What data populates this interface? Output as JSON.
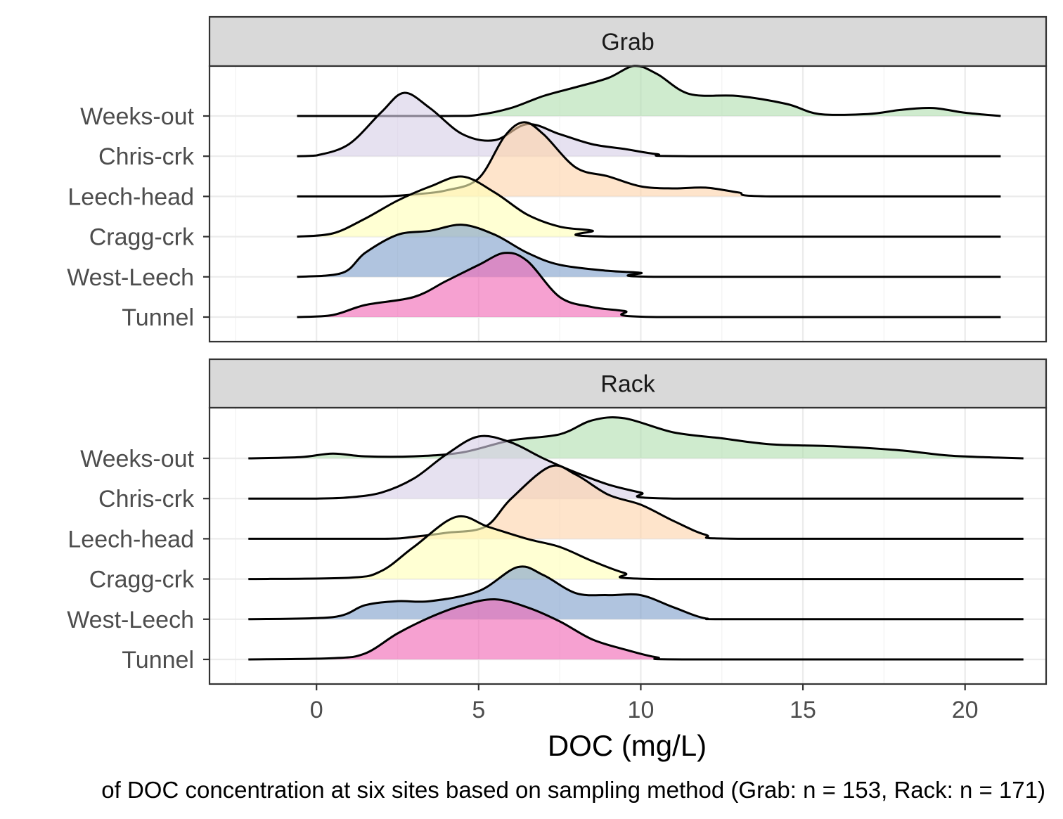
{
  "chart_data": {
    "type": "ridgeline",
    "xlabel": "DOC (mg/L)",
    "caption": "of DOC concentration at six sites based on sampling method (Grab: n = 153, Rack: n = 171)",
    "xlim": [
      -3.3,
      22.5
    ],
    "x_ticks": [
      0,
      5,
      10,
      15,
      20
    ],
    "x_tick_labels": [
      "0",
      "5",
      "10",
      "15",
      "20"
    ],
    "categories": [
      "Weeks-out",
      "Chris-crk",
      "Leech-head",
      "Cragg-crk",
      "West-Leech",
      "Tunnel"
    ],
    "grid": true,
    "colors": {
      "Weeks-out": "#b2dfb0",
      "Chris-crk": "#d6cfe6",
      "Leech-head": "#fdd4ab",
      "Cragg-crk": "#ffffb8",
      "West-Leech": "#7f9fcc",
      "Tunnel": "#f067b4"
    },
    "panels": [
      {
        "label": "Grab",
        "range": [
          -0.6,
          21.1
        ],
        "series": [
          {
            "name": "Weeks-out",
            "points": [
              [
                -0.6,
                0
              ],
              [
                4,
                0
              ],
              [
                5,
                0.03
              ],
              [
                6,
                0.2
              ],
              [
                7,
                0.5
              ],
              [
                8,
                0.72
              ],
              [
                9,
                0.95
              ],
              [
                9.8,
                1.25
              ],
              [
                10.5,
                1.05
              ],
              [
                11.5,
                0.55
              ],
              [
                13,
                0.5
              ],
              [
                14.5,
                0.3
              ],
              [
                15.5,
                0.05
              ],
              [
                17,
                0.05
              ],
              [
                18,
                0.15
              ],
              [
                19,
                0.2
              ],
              [
                20,
                0.08
              ],
              [
                21.1,
                0
              ]
            ]
          },
          {
            "name": "Chris-crk",
            "points": [
              [
                -0.6,
                0
              ],
              [
                0,
                0.02
              ],
              [
                1,
                0.3
              ],
              [
                2,
                1.1
              ],
              [
                2.7,
                1.58
              ],
              [
                3.5,
                1.2
              ],
              [
                4.5,
                0.55
              ],
              [
                5.5,
                0.4
              ],
              [
                6.5,
                0.8
              ],
              [
                7.5,
                0.55
              ],
              [
                8.5,
                0.3
              ],
              [
                9.5,
                0.18
              ],
              [
                10.5,
                0.05
              ],
              [
                11.5,
                0
              ],
              [
                21.1,
                0
              ]
            ]
          },
          {
            "name": "Leech-head",
            "points": [
              [
                -0.6,
                0
              ],
              [
                2,
                0
              ],
              [
                3,
                0.05
              ],
              [
                4,
                0.15
              ],
              [
                5,
                0.45
              ],
              [
                5.8,
                1.5
              ],
              [
                6.4,
                1.85
              ],
              [
                7,
                1.55
              ],
              [
                8,
                0.72
              ],
              [
                9,
                0.5
              ],
              [
                10,
                0.25
              ],
              [
                11,
                0.2
              ],
              [
                12,
                0.22
              ],
              [
                13,
                0.1
              ],
              [
                14,
                0
              ],
              [
                21.1,
                0
              ]
            ]
          },
          {
            "name": "Cragg-crk",
            "points": [
              [
                -0.6,
                0
              ],
              [
                0.5,
                0.08
              ],
              [
                1.5,
                0.45
              ],
              [
                2.5,
                0.9
              ],
              [
                3.5,
                1.25
              ],
              [
                4.5,
                1.5
              ],
              [
                5.5,
                1.1
              ],
              [
                6.5,
                0.55
              ],
              [
                7.5,
                0.25
              ],
              [
                8.5,
                0.15
              ],
              [
                9,
                0
              ],
              [
                21.1,
                0
              ]
            ]
          },
          {
            "name": "West-Leech",
            "points": [
              [
                -0.6,
                0
              ],
              [
                0.8,
                0.1
              ],
              [
                1.5,
                0.6
              ],
              [
                2.5,
                1.05
              ],
              [
                3.5,
                1.15
              ],
              [
                4.5,
                1.3
              ],
              [
                5.5,
                1.05
              ],
              [
                6.5,
                0.6
              ],
              [
                7.5,
                0.3
              ],
              [
                9,
                0.15
              ],
              [
                10,
                0.1
              ],
              [
                10.5,
                0
              ],
              [
                21.1,
                0
              ]
            ]
          },
          {
            "name": "Tunnel",
            "points": [
              [
                -0.6,
                0
              ],
              [
                0.5,
                0.05
              ],
              [
                1.5,
                0.3
              ],
              [
                3,
                0.5
              ],
              [
                4,
                0.9
              ],
              [
                5,
                1.3
              ],
              [
                5.8,
                1.6
              ],
              [
                6.5,
                1.4
              ],
              [
                7.5,
                0.5
              ],
              [
                8.5,
                0.25
              ],
              [
                9.5,
                0.15
              ],
              [
                10.5,
                0
              ],
              [
                21.1,
                0
              ]
            ]
          }
        ]
      },
      {
        "label": "Rack",
        "range": [
          -2.1,
          21.8
        ],
        "series": [
          {
            "name": "Weeks-out",
            "points": [
              [
                -2.1,
                0
              ],
              [
                -0.5,
                0.03
              ],
              [
                0.5,
                0.12
              ],
              [
                1.5,
                0.05
              ],
              [
                3,
                0.05
              ],
              [
                4.5,
                0.15
              ],
              [
                6,
                0.45
              ],
              [
                7.5,
                0.6
              ],
              [
                8.5,
                0.95
              ],
              [
                9.5,
                1.0
              ],
              [
                11,
                0.65
              ],
              [
                12.5,
                0.5
              ],
              [
                14,
                0.35
              ],
              [
                16,
                0.3
              ],
              [
                18,
                0.2
              ],
              [
                19.5,
                0.07
              ],
              [
                21,
                0.02
              ],
              [
                21.8,
                0
              ]
            ]
          },
          {
            "name": "Chris-crk",
            "points": [
              [
                -2.1,
                0
              ],
              [
                0,
                0
              ],
              [
                1,
                0.03
              ],
              [
                2,
                0.15
              ],
              [
                3,
                0.5
              ],
              [
                4,
                1.1
              ],
              [
                5,
                1.55
              ],
              [
                6,
                1.4
              ],
              [
                7,
                1.0
              ],
              [
                8,
                0.65
              ],
              [
                9,
                0.35
              ],
              [
                10,
                0.15
              ],
              [
                11,
                0
              ],
              [
                21.8,
                0
              ]
            ]
          },
          {
            "name": "Leech-head",
            "points": [
              [
                -2.1,
                0
              ],
              [
                2,
                0
              ],
              [
                3,
                0.05
              ],
              [
                4,
                0.15
              ],
              [
                5.2,
                0.3
              ],
              [
                6,
                1.0
              ],
              [
                7.2,
                1.8
              ],
              [
                8,
                1.6
              ],
              [
                9,
                1.1
              ],
              [
                10,
                0.85
              ],
              [
                11,
                0.45
              ],
              [
                12,
                0.1
              ],
              [
                13,
                0
              ],
              [
                21.8,
                0
              ]
            ]
          },
          {
            "name": "Cragg-crk",
            "points": [
              [
                -2.1,
                0
              ],
              [
                1,
                0.03
              ],
              [
                2,
                0.2
              ],
              [
                3,
                0.8
              ],
              [
                4.3,
                1.55
              ],
              [
                5.3,
                1.3
              ],
              [
                6.5,
                1.0
              ],
              [
                7.5,
                0.8
              ],
              [
                8.5,
                0.45
              ],
              [
                9.5,
                0.15
              ],
              [
                10.5,
                0
              ],
              [
                21.8,
                0
              ]
            ]
          },
          {
            "name": "West-Leech",
            "points": [
              [
                -2.1,
                0
              ],
              [
                0.5,
                0.05
              ],
              [
                1.5,
                0.35
              ],
              [
                2.5,
                0.45
              ],
              [
                3.5,
                0.45
              ],
              [
                5,
                0.7
              ],
              [
                6.2,
                1.3
              ],
              [
                7,
                1.1
              ],
              [
                8,
                0.65
              ],
              [
                9,
                0.6
              ],
              [
                10,
                0.6
              ],
              [
                11,
                0.3
              ],
              [
                12,
                0.02
              ],
              [
                13,
                0
              ],
              [
                21.8,
                0
              ]
            ]
          },
          {
            "name": "Tunnel",
            "points": [
              [
                -2.1,
                0
              ],
              [
                0.5,
                0.03
              ],
              [
                1.5,
                0.15
              ],
              [
                2.5,
                0.65
              ],
              [
                3.5,
                1.05
              ],
              [
                4.5,
                1.35
              ],
              [
                5.5,
                1.5
              ],
              [
                6.5,
                1.3
              ],
              [
                7.5,
                0.95
              ],
              [
                8.5,
                0.5
              ],
              [
                9.5,
                0.25
              ],
              [
                10.5,
                0.05
              ],
              [
                11.5,
                0
              ],
              [
                21.8,
                0
              ]
            ]
          }
        ]
      }
    ]
  }
}
